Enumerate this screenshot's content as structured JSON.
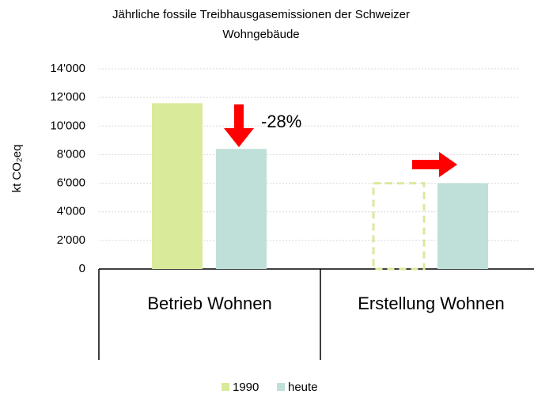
{
  "chart_data": {
    "type": "bar",
    "title": [
      "Jährliche fossile Treibhausgasemissionen der Schweizer",
      "Wohngebäude"
    ],
    "y_label": "kt CO₂eq",
    "categories": [
      "Betrieb Wohnen",
      "Erstellung Wohnen"
    ],
    "series": [
      {
        "name": "1990",
        "color": "#d9ea9a",
        "values": [
          11600,
          6000
        ],
        "dashed": [
          false,
          true
        ]
      },
      {
        "name": "heute",
        "color": "#bfe0d9",
        "values": [
          8400,
          6000
        ],
        "dashed": [
          false,
          false
        ]
      }
    ],
    "annotations": [
      "-28%"
    ],
    "ylim": [
      0,
      14000
    ],
    "yticks": [
      0,
      {
        "value": 2000,
        "label": "2'000"
      },
      {
        "value": 4000,
        "label": "4'000"
      },
      {
        "value": 6000,
        "label": "6'000"
      },
      {
        "value": 8000,
        "label": "8'000"
      },
      {
        "value": 10000,
        "label": "10'000"
      },
      {
        "value": 12000,
        "label": "12'000"
      },
      {
        "value": 14000,
        "label": "14'000"
      }
    ],
    "grid": true,
    "legend": "bottom"
  }
}
